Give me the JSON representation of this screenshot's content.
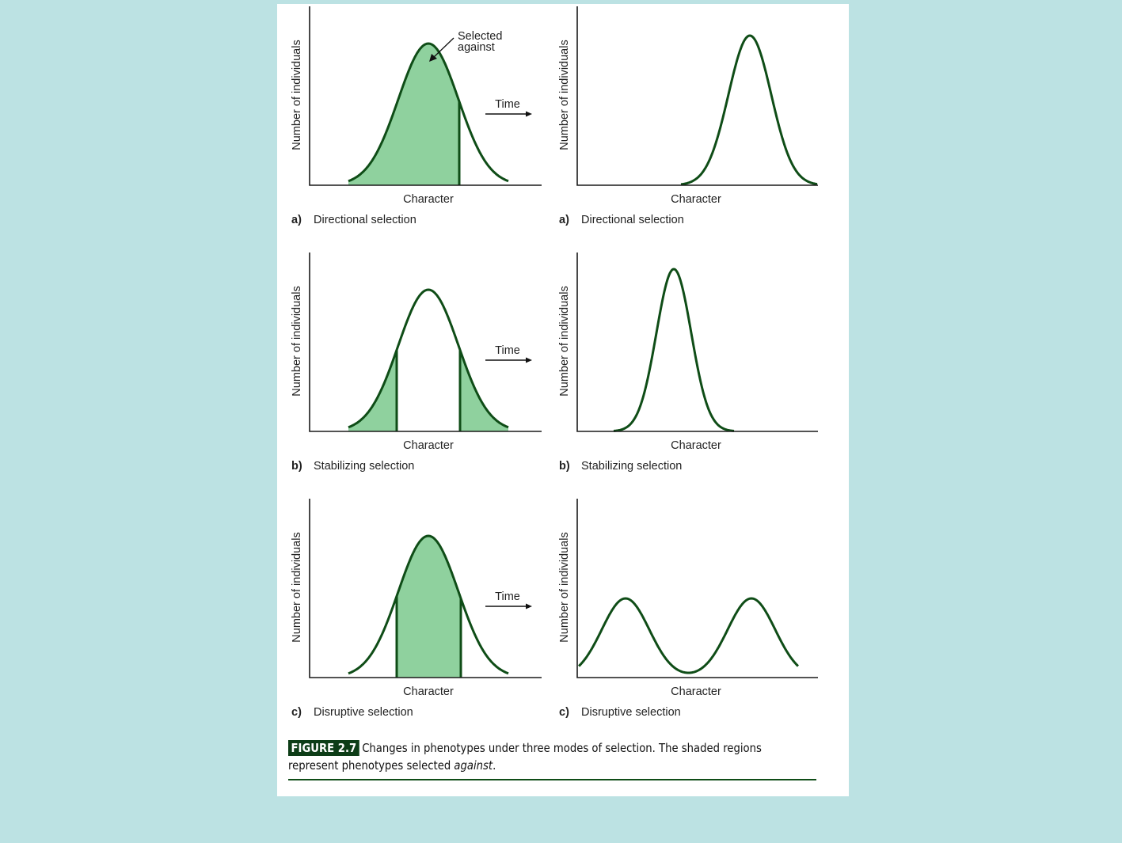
{
  "axis_labels": {
    "y": "Number of individuals",
    "x": "Character"
  },
  "time_label": "Time",
  "annotation": {
    "line1": "Selected",
    "line2": "against"
  },
  "panels": [
    {
      "letter": "a)",
      "title": "Directional selection"
    },
    {
      "letter": "b)",
      "title": "Stabilizing selection"
    },
    {
      "letter": "c)",
      "title": "Disruptive selection"
    }
  ],
  "caption": {
    "tag": "FIGURE 2.7",
    "text": "Changes in phenotypes under three modes of selection. The shaded regions represent phenotypes selected ",
    "emphasis": "against",
    "end": "."
  },
  "colors": {
    "background": "#bce2e3",
    "curve": "#0f4d17",
    "shade": "#8fd19e"
  }
}
